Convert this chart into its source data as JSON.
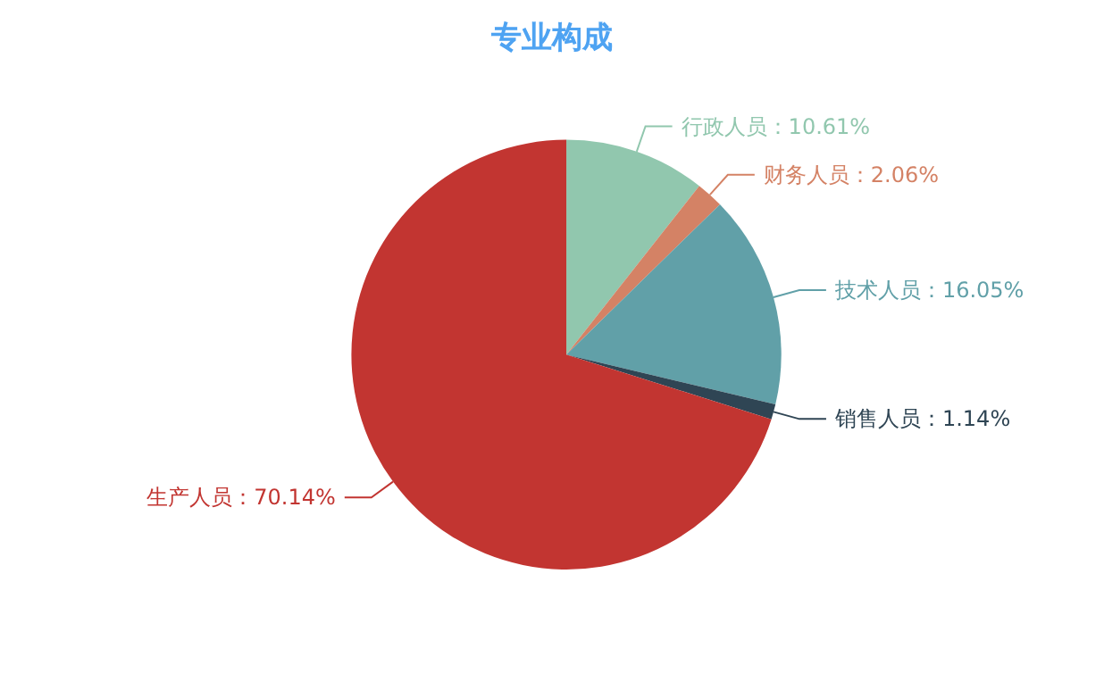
{
  "chart_data": {
    "type": "pie",
    "title": "专业构成",
    "categories": [
      "行政人员",
      "财务人员",
      "技术人员",
      "销售人员",
      "生产人员"
    ],
    "values": [
      10.61,
      2.06,
      16.05,
      1.14,
      70.14
    ],
    "value_labels": [
      "10.61%",
      "2.06%",
      "16.05%",
      "1.14%",
      "70.14%"
    ],
    "colors": [
      "#91c7ae",
      "#d48265",
      "#61a0a8",
      "#2f4554",
      "#c23531"
    ],
    "legend": false
  }
}
